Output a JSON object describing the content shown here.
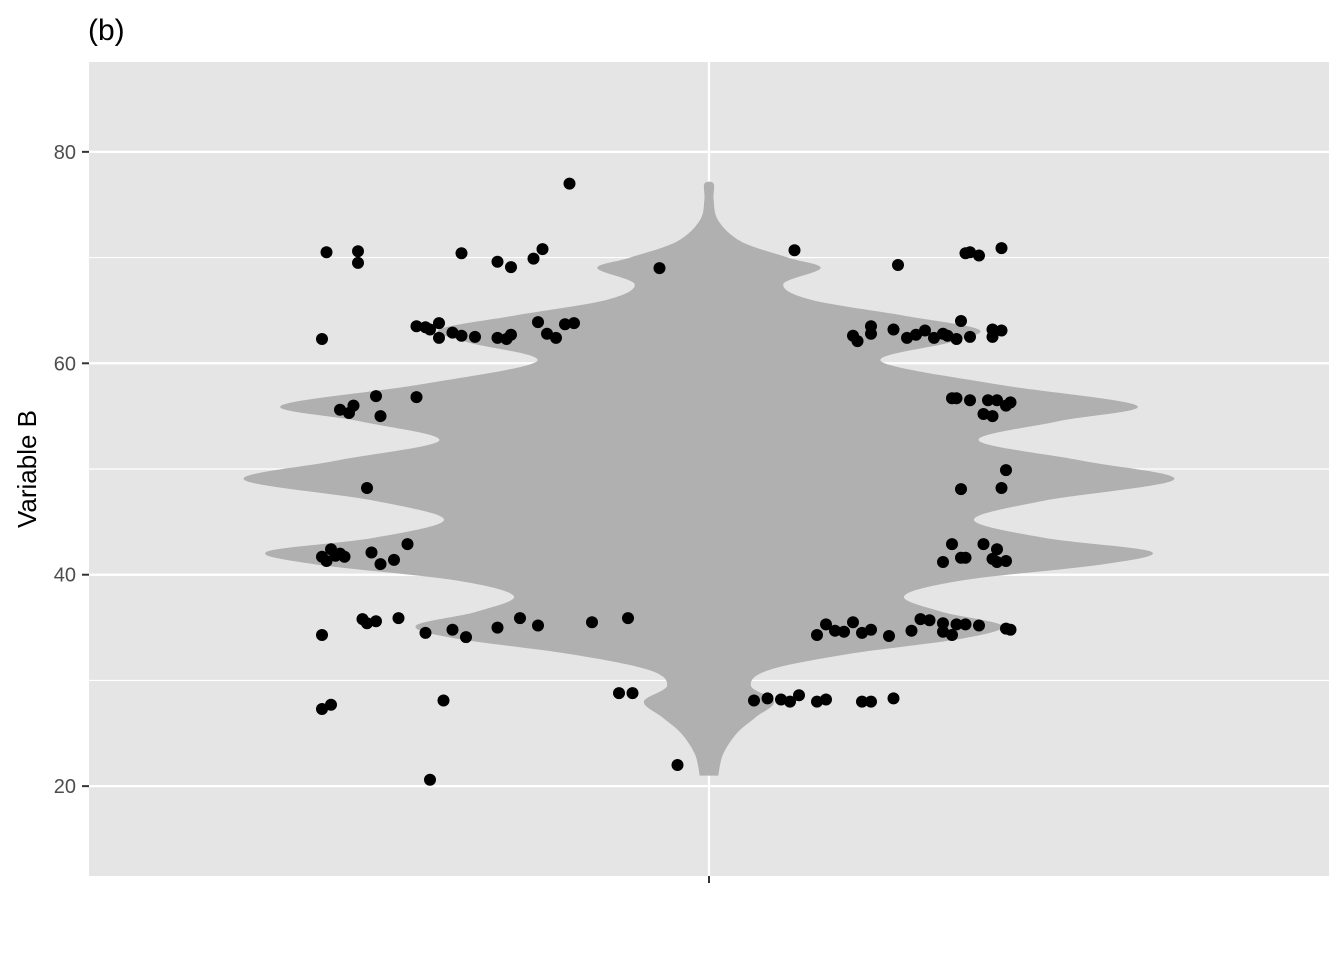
{
  "chart_data": {
    "type": "violin+jitter",
    "panel_label": "(b)",
    "title": "",
    "xlabel": "",
    "ylabel": "Variable B",
    "ylim": [
      11.5,
      88.5
    ],
    "yticks": [
      20,
      40,
      60,
      80
    ],
    "ytick_labels": [
      "20",
      "40",
      "60",
      "80"
    ],
    "x_categories": [
      ""
    ],
    "grid": true,
    "legend": "none",
    "colors": {
      "panel_bg": "#e5e5e5",
      "grid": "#ffffff",
      "violin": "#b0b0b0",
      "points": "#000000"
    },
    "violin": {
      "y_min": 21.0,
      "y_max": 77.0,
      "density_profile": [
        [
          21.0,
          0.02
        ],
        [
          23.0,
          0.03
        ],
        [
          25.0,
          0.06
        ],
        [
          26.5,
          0.1
        ],
        [
          28.0,
          0.14
        ],
        [
          29.5,
          0.09
        ],
        [
          31.0,
          0.13
        ],
        [
          32.5,
          0.3
        ],
        [
          34.0,
          0.55
        ],
        [
          35.2,
          0.63
        ],
        [
          36.5,
          0.5
        ],
        [
          38.0,
          0.42
        ],
        [
          39.5,
          0.55
        ],
        [
          41.0,
          0.85
        ],
        [
          42.2,
          0.95
        ],
        [
          43.5,
          0.72
        ],
        [
          45.2,
          0.57
        ],
        [
          47.0,
          0.72
        ],
        [
          49.0,
          1.0
        ],
        [
          50.8,
          0.8
        ],
        [
          52.7,
          0.58
        ],
        [
          54.5,
          0.75
        ],
        [
          56.0,
          0.92
        ],
        [
          58.0,
          0.62
        ],
        [
          60.2,
          0.37
        ],
        [
          62.0,
          0.52
        ],
        [
          63.2,
          0.58
        ],
        [
          64.5,
          0.42
        ],
        [
          66.0,
          0.22
        ],
        [
          67.5,
          0.16
        ],
        [
          69.0,
          0.24
        ],
        [
          70.0,
          0.17
        ],
        [
          71.5,
          0.07
        ],
        [
          73.5,
          0.02
        ],
        [
          75.5,
          0.01
        ],
        [
          77.0,
          0.01
        ]
      ]
    },
    "points": [
      {
        "x": -0.85,
        "y": 70.5
      },
      {
        "x": -0.78,
        "y": 70.6
      },
      {
        "x": -0.78,
        "y": 69.5
      },
      {
        "x": -0.55,
        "y": 70.4
      },
      {
        "x": -0.47,
        "y": 69.6
      },
      {
        "x": -0.44,
        "y": 69.1
      },
      {
        "x": -0.39,
        "y": 69.9
      },
      {
        "x": -0.37,
        "y": 70.8
      },
      {
        "x": -0.31,
        "y": 77.0
      },
      {
        "x": -0.11,
        "y": 69.0
      },
      {
        "x": 0.19,
        "y": 70.7
      },
      {
        "x": 0.42,
        "y": 69.3
      },
      {
        "x": 0.57,
        "y": 70.4
      },
      {
        "x": 0.58,
        "y": 70.5
      },
      {
        "x": 0.6,
        "y": 70.2
      },
      {
        "x": 0.65,
        "y": 70.9
      },
      {
        "x": -0.86,
        "y": 62.3
      },
      {
        "x": -0.65,
        "y": 63.5
      },
      {
        "x": -0.63,
        "y": 63.4
      },
      {
        "x": -0.62,
        "y": 63.2
      },
      {
        "x": -0.6,
        "y": 63.8
      },
      {
        "x": -0.6,
        "y": 62.4
      },
      {
        "x": -0.57,
        "y": 62.9
      },
      {
        "x": -0.55,
        "y": 62.6
      },
      {
        "x": -0.52,
        "y": 62.5
      },
      {
        "x": -0.47,
        "y": 62.4
      },
      {
        "x": -0.45,
        "y": 62.3
      },
      {
        "x": -0.44,
        "y": 62.7
      },
      {
        "x": -0.38,
        "y": 63.9
      },
      {
        "x": -0.36,
        "y": 62.8
      },
      {
        "x": -0.34,
        "y": 62.4
      },
      {
        "x": -0.32,
        "y": 63.7
      },
      {
        "x": -0.3,
        "y": 63.8
      },
      {
        "x": 0.32,
        "y": 62.6
      },
      {
        "x": 0.33,
        "y": 62.1
      },
      {
        "x": 0.36,
        "y": 63.5
      },
      {
        "x": 0.36,
        "y": 62.8
      },
      {
        "x": 0.41,
        "y": 63.2
      },
      {
        "x": 0.44,
        "y": 62.4
      },
      {
        "x": 0.46,
        "y": 62.7
      },
      {
        "x": 0.48,
        "y": 63.1
      },
      {
        "x": 0.5,
        "y": 62.4
      },
      {
        "x": 0.52,
        "y": 62.8
      },
      {
        "x": 0.53,
        "y": 62.6
      },
      {
        "x": 0.55,
        "y": 62.3
      },
      {
        "x": 0.56,
        "y": 64.0
      },
      {
        "x": 0.58,
        "y": 62.5
      },
      {
        "x": 0.63,
        "y": 63.2
      },
      {
        "x": 0.63,
        "y": 62.5
      },
      {
        "x": 0.65,
        "y": 63.1
      },
      {
        "x": -0.82,
        "y": 55.6
      },
      {
        "x": -0.8,
        "y": 55.3
      },
      {
        "x": -0.79,
        "y": 56.0
      },
      {
        "x": -0.74,
        "y": 56.9
      },
      {
        "x": -0.73,
        "y": 55.0
      },
      {
        "x": -0.65,
        "y": 56.8
      },
      {
        "x": 0.54,
        "y": 56.7
      },
      {
        "x": 0.55,
        "y": 56.7
      },
      {
        "x": 0.58,
        "y": 56.5
      },
      {
        "x": 0.61,
        "y": 55.2
      },
      {
        "x": 0.62,
        "y": 56.5
      },
      {
        "x": 0.63,
        "y": 55.0
      },
      {
        "x": 0.64,
        "y": 56.5
      },
      {
        "x": 0.66,
        "y": 56.0
      },
      {
        "x": 0.67,
        "y": 56.3
      },
      {
        "x": -0.76,
        "y": 48.2
      },
      {
        "x": 0.56,
        "y": 48.1
      },
      {
        "x": 0.65,
        "y": 48.2
      },
      {
        "x": 0.66,
        "y": 49.9
      },
      {
        "x": -0.86,
        "y": 41.7
      },
      {
        "x": -0.85,
        "y": 41.3
      },
      {
        "x": -0.84,
        "y": 42.4
      },
      {
        "x": -0.83,
        "y": 41.8
      },
      {
        "x": -0.82,
        "y": 42.0
      },
      {
        "x": -0.81,
        "y": 41.7
      },
      {
        "x": -0.75,
        "y": 42.1
      },
      {
        "x": -0.73,
        "y": 41.0
      },
      {
        "x": -0.7,
        "y": 41.4
      },
      {
        "x": -0.67,
        "y": 42.9
      },
      {
        "x": 0.52,
        "y": 41.2
      },
      {
        "x": 0.54,
        "y": 42.9
      },
      {
        "x": 0.56,
        "y": 41.6
      },
      {
        "x": 0.57,
        "y": 41.6
      },
      {
        "x": 0.61,
        "y": 42.9
      },
      {
        "x": 0.63,
        "y": 41.5
      },
      {
        "x": 0.64,
        "y": 42.4
      },
      {
        "x": 0.64,
        "y": 41.2
      },
      {
        "x": 0.66,
        "y": 41.3
      },
      {
        "x": -0.86,
        "y": 34.3
      },
      {
        "x": -0.77,
        "y": 35.8
      },
      {
        "x": -0.76,
        "y": 35.4
      },
      {
        "x": -0.74,
        "y": 35.6
      },
      {
        "x": -0.69,
        "y": 35.9
      },
      {
        "x": -0.63,
        "y": 34.5
      },
      {
        "x": -0.57,
        "y": 34.8
      },
      {
        "x": -0.54,
        "y": 34.1
      },
      {
        "x": -0.47,
        "y": 35.0
      },
      {
        "x": -0.42,
        "y": 35.9
      },
      {
        "x": -0.38,
        "y": 35.2
      },
      {
        "x": -0.26,
        "y": 35.5
      },
      {
        "x": -0.18,
        "y": 35.9
      },
      {
        "x": 0.24,
        "y": 34.3
      },
      {
        "x": 0.26,
        "y": 35.3
      },
      {
        "x": 0.28,
        "y": 34.7
      },
      {
        "x": 0.3,
        "y": 34.6
      },
      {
        "x": 0.32,
        "y": 35.5
      },
      {
        "x": 0.34,
        "y": 34.5
      },
      {
        "x": 0.36,
        "y": 34.8
      },
      {
        "x": 0.4,
        "y": 34.2
      },
      {
        "x": 0.45,
        "y": 34.7
      },
      {
        "x": 0.47,
        "y": 35.8
      },
      {
        "x": 0.49,
        "y": 35.7
      },
      {
        "x": 0.52,
        "y": 35.4
      },
      {
        "x": 0.52,
        "y": 34.6
      },
      {
        "x": 0.54,
        "y": 34.3
      },
      {
        "x": 0.55,
        "y": 35.3
      },
      {
        "x": 0.57,
        "y": 35.3
      },
      {
        "x": 0.6,
        "y": 35.2
      },
      {
        "x": 0.66,
        "y": 34.9
      },
      {
        "x": 0.67,
        "y": 34.8
      },
      {
        "x": -0.86,
        "y": 27.3
      },
      {
        "x": -0.84,
        "y": 27.7
      },
      {
        "x": -0.59,
        "y": 28.1
      },
      {
        "x": -0.2,
        "y": 28.8
      },
      {
        "x": -0.17,
        "y": 28.8
      },
      {
        "x": 0.1,
        "y": 28.1
      },
      {
        "x": 0.13,
        "y": 28.3
      },
      {
        "x": 0.16,
        "y": 28.2
      },
      {
        "x": 0.18,
        "y": 28.0
      },
      {
        "x": 0.2,
        "y": 28.6
      },
      {
        "x": 0.24,
        "y": 28.0
      },
      {
        "x": 0.26,
        "y": 28.2
      },
      {
        "x": 0.34,
        "y": 28.0
      },
      {
        "x": 0.36,
        "y": 28.0
      },
      {
        "x": 0.41,
        "y": 28.3
      },
      {
        "x": -0.62,
        "y": 20.6
      },
      {
        "x": -0.07,
        "y": 22.0
      }
    ]
  }
}
